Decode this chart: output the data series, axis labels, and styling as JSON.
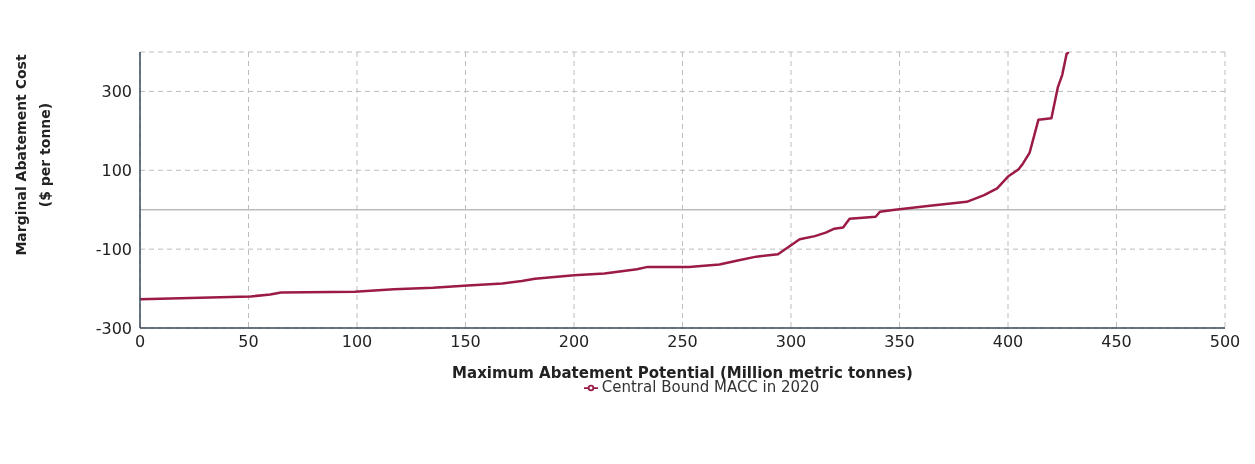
{
  "chart_data": {
    "type": "line",
    "xlabel": "Maximum Abatement Potential (Million metric tonnes)",
    "ylabel": "Marginal Abatement Cost\n($ per tonne)",
    "xlim": [
      0,
      500
    ],
    "xticks": [
      0,
      50,
      100,
      150,
      200,
      250,
      300,
      350,
      400,
      450,
      500
    ],
    "ylim": [
      -300,
      400
    ],
    "yticks": [
      -300,
      -100,
      100,
      300,
      {
        "value": 400,
        "label": null
      }
    ],
    "grid": true,
    "legend": "bottom",
    "marker": "none",
    "line_style": "solid",
    "ref_lines": [
      {
        "axis": "y",
        "value": 0,
        "label": null,
        "color": "#bbbbbb",
        "line_style": "solid"
      }
    ],
    "series": [
      {
        "name": "Central Bound MACC in 2020",
        "color": "#9b1b45",
        "x": [
          0,
          51,
          60,
          65,
          99,
          117,
          135,
          151,
          167,
          176,
          182,
          200,
          214,
          229,
          234,
          253,
          267,
          276,
          284,
          294,
          300,
          304,
          311,
          316,
          320,
          324,
          327,
          339,
          341,
          347,
          350,
          364,
          381,
          389,
          395,
          400,
          405,
          407,
          410,
          414,
          420,
          423,
          425,
          427,
          428
        ],
        "values": [
          -227,
          -220,
          -215,
          -210,
          -208,
          -202,
          -198,
          -192,
          -187,
          -181,
          -175,
          -166,
          -162,
          -151,
          -145,
          -145,
          -139,
          -128,
          -119,
          -113,
          -90,
          -75,
          -67,
          -58,
          -48,
          -45,
          -23,
          -18,
          -5,
          -1,
          1,
          10,
          20,
          37,
          54,
          84,
          103,
          118,
          145,
          228,
          232,
          311,
          342,
          395,
          400
        ]
      }
    ]
  }
}
